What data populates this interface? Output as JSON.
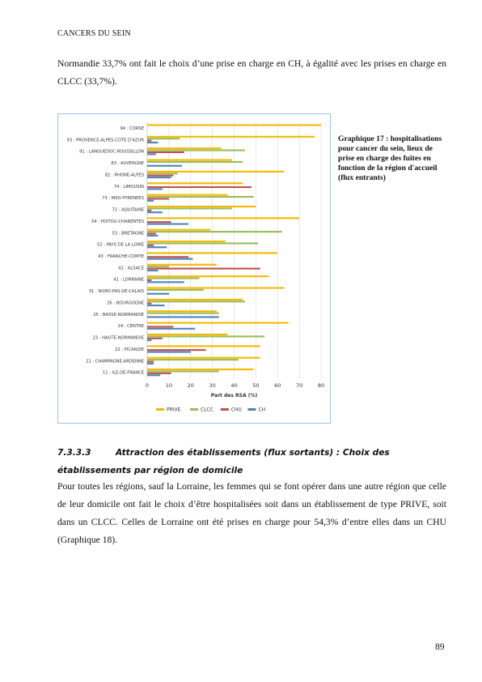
{
  "header": "CANCERS DU SEIN",
  "paragraph_1": "Normandie 33,7% ont fait le choix d’une prise en charge en CH, à égalité avec les prises en charge en CLCC (33,7%).",
  "caption": "Graphique 17 : hospitalisations pour cancer du sein, lieux de prise en charge des fuites en fonction de la région d'accueil (flux entrants)",
  "section": {
    "number": "7.3.3.3",
    "title": "Attraction des établissements (flux sortants) : Choix des établissements par région de domicile"
  },
  "paragraph_2": "Pour toutes les régions, sauf la Lorraine, les femmes qui se font opérer dans une autre région que celle de leur domicile ont fait le choix d’être hospitalisées soit dans un établissement de type PRIVE, soit dans un CLCC. Celles de Lorraine ont été prises en charge pour 54,3% d’entre elles dans un CHU (Graphique 18).",
  "page_number": "89",
  "chart_data": {
    "type": "bar",
    "orientation": "horizontal",
    "categories": [
      "94 : CORSE",
      "93 : PROVENCE-ALPES-COTE D'AZUR",
      "91 : LANGUEDOC-ROUSSILLON",
      "83 : AUVERGNE",
      "82 : RHONE-ALPES",
      "74 : LIMOUSIN",
      "73 : MIDI-PYRENEES",
      "72 : AQUITAINE",
      "54 : POITOU-CHARENTES",
      "53 : BRETAGNE",
      "52 : PAYS DE LA LOIRE",
      "43 : FRANCHE-COMTE",
      "42 : ALSACE",
      "41 : LORRAINE",
      "31 : NORD-PAS-DE-CALAIS",
      "26 : BOURGOGNE",
      "25 : BASSE-NORMANDIE",
      "24 : CENTRE",
      "23 : HAUTE-NORMANDIE",
      "22 : PICARDIE",
      "21 : CHAMPAGNE-ARDENNE",
      "11 : ILE-DE-FRANCE"
    ],
    "series": [
      {
        "name": "PRIVE",
        "color": "#f5b800",
        "values": [
          80,
          77,
          34,
          39,
          63,
          44,
          37,
          50,
          70,
          29,
          36,
          60,
          32,
          56,
          63,
          44,
          32,
          65,
          37,
          52,
          52,
          49
        ]
      },
      {
        "name": "CLCC",
        "color": "#9bbb59",
        "values": [
          0,
          15,
          45,
          44,
          14,
          0,
          49,
          39,
          0,
          62,
          51,
          0,
          10,
          24,
          26,
          45,
          33,
          0,
          54,
          0,
          42,
          33
        ]
      },
      {
        "name": "CHU",
        "color": "#c0504d",
        "values": [
          0,
          2,
          17,
          0,
          12,
          48,
          10,
          2,
          11,
          4,
          3,
          19,
          52,
          2,
          0,
          2,
          0,
          12,
          7,
          27,
          3,
          11
        ]
      },
      {
        "name": "CH",
        "color": "#4f81bd",
        "values": [
          0,
          5,
          4,
          16,
          11,
          7,
          3,
          7,
          19,
          5,
          9,
          21,
          5,
          17,
          10,
          8,
          33,
          22,
          2,
          20,
          3,
          6
        ]
      }
    ],
    "xlabel": "Part des RSA (%)",
    "xlim": [
      0,
      80
    ],
    "xticks": [
      "0",
      "10",
      "20",
      "30",
      "40",
      "50",
      "60",
      "70",
      "80"
    ],
    "grid": true,
    "legend_position": "bottom"
  }
}
